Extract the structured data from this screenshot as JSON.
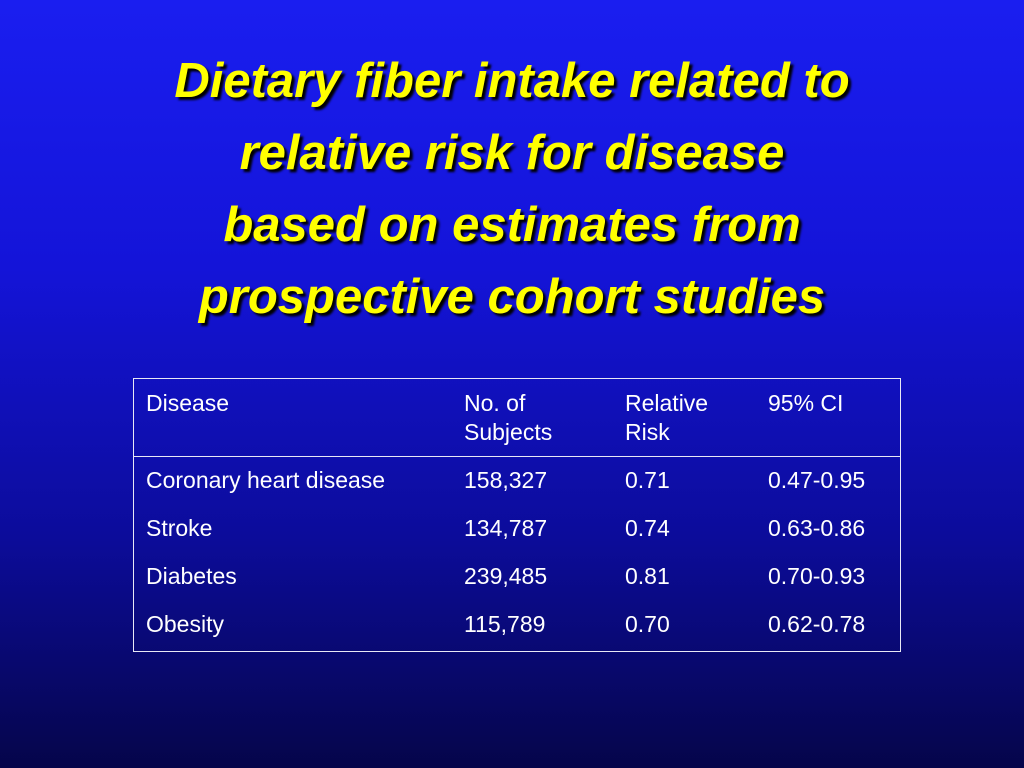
{
  "slide": {
    "title_lines": [
      "Dietary fiber intake related to",
      "relative risk for disease",
      "based on estimates from",
      "prospective cohort studies"
    ],
    "colors": {
      "background_top": "#1a1ef0",
      "background_bottom": "#05054a",
      "title": "#ffff00",
      "table_text": "#ffffff"
    }
  },
  "table": {
    "headers": [
      [
        "Disease"
      ],
      [
        "No. of",
        "Subjects"
      ],
      [
        "Relative",
        "Risk"
      ],
      [
        "95% CI"
      ]
    ],
    "rows": [
      [
        "Coronary heart disease",
        "158,327",
        "0.71",
        "0.47-0.95"
      ],
      [
        "Stroke",
        "134,787",
        "0.74",
        "0.63-0.86"
      ],
      [
        "Diabetes",
        "239,485",
        "0.81",
        "0.70-0.93"
      ],
      [
        "Obesity",
        "115,789",
        "0.70",
        "0.62-0.78"
      ]
    ]
  }
}
